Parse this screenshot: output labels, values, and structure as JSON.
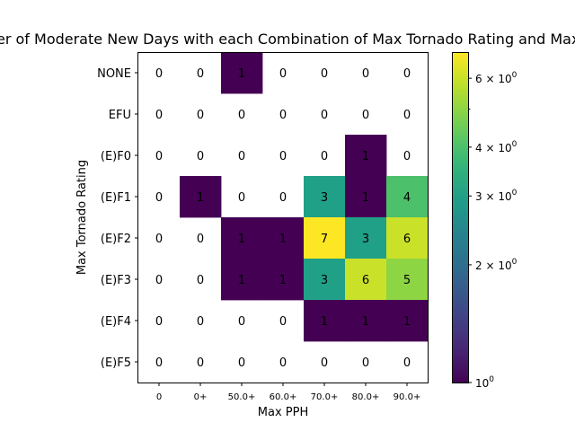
{
  "chart_data": {
    "type": "heatmap",
    "title": "Number of Moderate New Days with each Combination of Max Tornado Rating and Max PPH",
    "xlabel": "Max PPH",
    "ylabel": "Max Tornado Rating",
    "x_categories": [
      "0",
      "0+",
      "50.0+",
      "60.0+",
      "70.0+",
      "80.0+",
      "90.0+"
    ],
    "y_categories": [
      "NONE",
      "EFU",
      "(E)F0",
      "(E)F1",
      "(E)F2",
      "(E)F3",
      "(E)F4",
      "(E)F5"
    ],
    "values": [
      [
        0,
        0,
        1,
        0,
        0,
        0,
        0
      ],
      [
        0,
        0,
        0,
        0,
        0,
        0,
        0
      ],
      [
        0,
        0,
        0,
        0,
        0,
        1,
        0
      ],
      [
        0,
        1,
        0,
        0,
        3,
        1,
        4
      ],
      [
        0,
        0,
        1,
        1,
        7,
        3,
        6
      ],
      [
        0,
        0,
        1,
        1,
        3,
        6,
        5
      ],
      [
        0,
        0,
        0,
        0,
        1,
        1,
        1
      ],
      [
        0,
        0,
        0,
        0,
        0,
        0,
        0
      ]
    ],
    "color_scale": "log",
    "colormap": "viridis",
    "zero_cells": "blank",
    "color_range": [
      1,
      7
    ],
    "colorbar": {
      "major_ticks": [
        {
          "value": 1,
          "mantissa": "10",
          "exponent": "0"
        },
        {
          "value": 2,
          "mantissa": "2 × 10",
          "exponent": "0"
        },
        {
          "value": 3,
          "mantissa": "3 × 10",
          "exponent": "0"
        },
        {
          "value": 4,
          "mantissa": "4 × 10",
          "exponent": "0"
        },
        {
          "value": 6,
          "mantissa": "6 × 10",
          "exponent": "0"
        }
      ],
      "minor_ticks": [
        5
      ]
    }
  }
}
